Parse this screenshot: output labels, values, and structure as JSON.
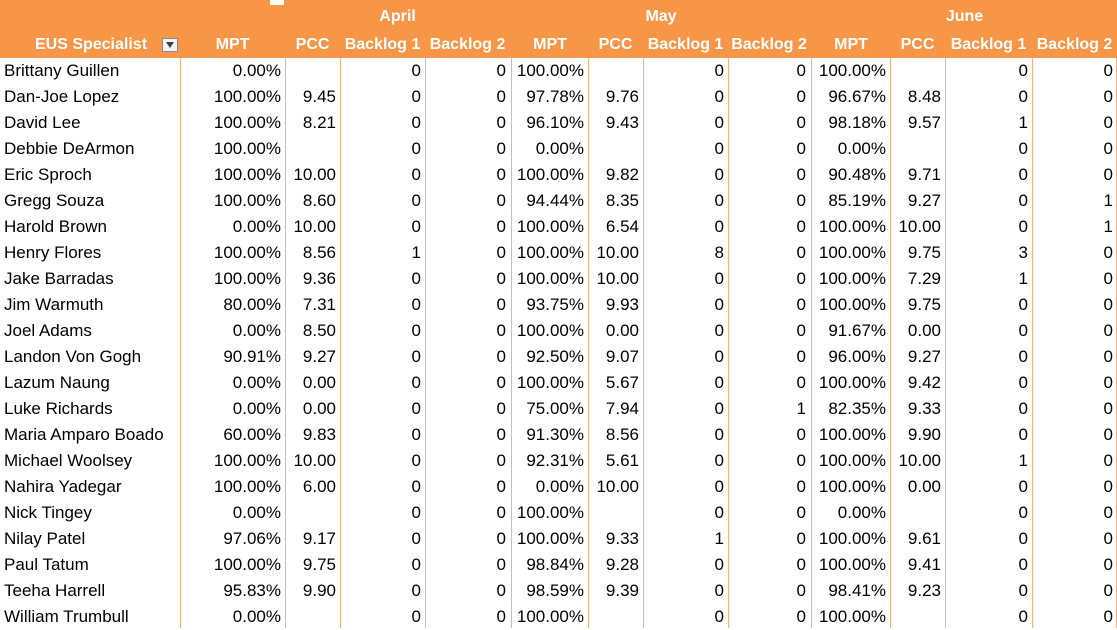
{
  "months": [
    "April",
    "May",
    "June"
  ],
  "header": {
    "name_col": "EUS Specialist",
    "cols": [
      "MPT",
      "PCC",
      "Backlog 1",
      "Backlog 2",
      "MPT",
      "PCC",
      "Backlog 1",
      "Backlog 2",
      "MPT",
      "PCC",
      "Backlog 1",
      "Backlog 2"
    ]
  },
  "rows": [
    {
      "name": "Brittany Guillen",
      "v": [
        "0.00%",
        "",
        "0",
        "0",
        "100.00%",
        "",
        "0",
        "0",
        "100.00%",
        "",
        "0",
        "0"
      ]
    },
    {
      "name": "Dan-Joe Lopez",
      "v": [
        "100.00%",
        "9.45",
        "0",
        "0",
        "97.78%",
        "9.76",
        "0",
        "0",
        "96.67%",
        "8.48",
        "0",
        "0"
      ]
    },
    {
      "name": "David Lee",
      "v": [
        "100.00%",
        "8.21",
        "0",
        "0",
        "96.10%",
        "9.43",
        "0",
        "0",
        "98.18%",
        "9.57",
        "1",
        "0"
      ]
    },
    {
      "name": "Debbie DeArmon",
      "v": [
        "100.00%",
        "",
        "0",
        "0",
        "0.00%",
        "",
        "0",
        "0",
        "0.00%",
        "",
        "0",
        "0"
      ]
    },
    {
      "name": "Eric Sproch",
      "v": [
        "100.00%",
        "10.00",
        "0",
        "0",
        "100.00%",
        "9.82",
        "0",
        "0",
        "90.48%",
        "9.71",
        "0",
        "0"
      ]
    },
    {
      "name": "Gregg Souza",
      "v": [
        "100.00%",
        "8.60",
        "0",
        "0",
        "94.44%",
        "8.35",
        "0",
        "0",
        "85.19%",
        "9.27",
        "0",
        "1"
      ]
    },
    {
      "name": "Harold Brown",
      "v": [
        "0.00%",
        "10.00",
        "0",
        "0",
        "100.00%",
        "6.54",
        "0",
        "0",
        "100.00%",
        "10.00",
        "0",
        "1"
      ]
    },
    {
      "name": "Henry Flores",
      "v": [
        "100.00%",
        "8.56",
        "1",
        "0",
        "100.00%",
        "10.00",
        "8",
        "0",
        "100.00%",
        "9.75",
        "3",
        "0"
      ]
    },
    {
      "name": "Jake Barradas",
      "v": [
        "100.00%",
        "9.36",
        "0",
        "0",
        "100.00%",
        "10.00",
        "0",
        "0",
        "100.00%",
        "7.29",
        "1",
        "0"
      ]
    },
    {
      "name": "Jim Warmuth",
      "v": [
        "80.00%",
        "7.31",
        "0",
        "0",
        "93.75%",
        "9.93",
        "0",
        "0",
        "100.00%",
        "9.75",
        "0",
        "0"
      ]
    },
    {
      "name": "Joel Adams",
      "v": [
        "0.00%",
        "8.50",
        "0",
        "0",
        "100.00%",
        "0.00",
        "0",
        "0",
        "91.67%",
        "0.00",
        "0",
        "0"
      ]
    },
    {
      "name": "Landon Von Gogh",
      "v": [
        "90.91%",
        "9.27",
        "0",
        "0",
        "92.50%",
        "9.07",
        "0",
        "0",
        "96.00%",
        "9.27",
        "0",
        "0"
      ]
    },
    {
      "name": "Lazum Naung",
      "v": [
        "0.00%",
        "0.00",
        "0",
        "0",
        "100.00%",
        "5.67",
        "0",
        "0",
        "100.00%",
        "9.42",
        "0",
        "0"
      ]
    },
    {
      "name": "Luke Richards",
      "v": [
        "0.00%",
        "0.00",
        "0",
        "0",
        "75.00%",
        "7.94",
        "0",
        "1",
        "82.35%",
        "9.33",
        "0",
        "0"
      ]
    },
    {
      "name": "Maria Amparo Boado",
      "v": [
        "60.00%",
        "9.83",
        "0",
        "0",
        "91.30%",
        "8.56",
        "0",
        "0",
        "100.00%",
        "9.90",
        "0",
        "0"
      ]
    },
    {
      "name": "Michael Woolsey",
      "v": [
        "100.00%",
        "10.00",
        "0",
        "0",
        "92.31%",
        "5.61",
        "0",
        "0",
        "100.00%",
        "10.00",
        "1",
        "0"
      ]
    },
    {
      "name": "Nahira Yadegar",
      "v": [
        "100.00%",
        "6.00",
        "0",
        "0",
        "0.00%",
        "10.00",
        "0",
        "0",
        "100.00%",
        "0.00",
        "0",
        "0"
      ]
    },
    {
      "name": "Nick Tingey",
      "v": [
        "0.00%",
        "",
        "0",
        "0",
        "100.00%",
        "",
        "0",
        "0",
        "0.00%",
        "",
        "0",
        "0"
      ]
    },
    {
      "name": "Nilay Patel",
      "v": [
        "97.06%",
        "9.17",
        "0",
        "0",
        "100.00%",
        "9.33",
        "1",
        "0",
        "100.00%",
        "9.61",
        "0",
        "0"
      ]
    },
    {
      "name": "Paul Tatum",
      "v": [
        "100.00%",
        "9.75",
        "0",
        "0",
        "98.84%",
        "9.28",
        "0",
        "0",
        "100.00%",
        "9.41",
        "0",
        "0"
      ]
    },
    {
      "name": "Teeha Harrell",
      "v": [
        "95.83%",
        "9.90",
        "0",
        "0",
        "98.59%",
        "9.39",
        "0",
        "0",
        "98.41%",
        "9.23",
        "0",
        "0"
      ]
    },
    {
      "name": "William Trumbull",
      "v": [
        "0.00%",
        "",
        "0",
        "0",
        "100.00%",
        "",
        "0",
        "0",
        "100.00%",
        "",
        "0",
        "0"
      ]
    }
  ],
  "colors": {
    "header": "#f79646",
    "grid": "#f4b183"
  },
  "icons": {
    "filter": "filter-dropdown-icon"
  }
}
